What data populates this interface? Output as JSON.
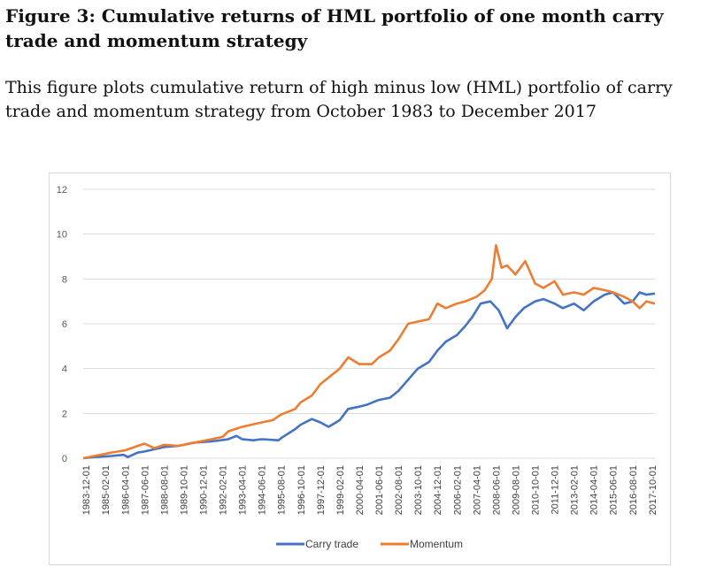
{
  "figure": {
    "title": "Figure 3: Cumulative returns of HML portfolio of one month carry trade and momentum strategy",
    "description": "This figure plots cumulative return of high minus low (HML) portfolio of carry trade and momentum strategy from October 1983 to December 2017"
  },
  "chart_data": {
    "type": "line",
    "title": "",
    "xlabel": "",
    "ylabel": "",
    "ylim": [
      0,
      12
    ],
    "yticks": [
      0,
      2,
      4,
      6,
      8,
      10,
      12
    ],
    "grid": true,
    "legend_position": "bottom",
    "x_tick_labels": [
      "1983-12-01",
      "1985-02-01",
      "1986-04-01",
      "1987-06-01",
      "1988-08-01",
      "1989-10-01",
      "1990-12-01",
      "1992-02-01",
      "1993-04-01",
      "1994-06-01",
      "1995-08-01",
      "1996-10-01",
      "1997-12-01",
      "1999-02-01",
      "2000-04-01",
      "2001-06-01",
      "2002-08-01",
      "2003-10-01",
      "2004-12-01",
      "2006-02-01",
      "2007-04-01",
      "2008-06-01",
      "2009-08-01",
      "2010-10-01",
      "2011-12-01",
      "2013-02-01",
      "2014-04-01",
      "2015-06-01",
      "2016-08-01",
      "2017-10-01"
    ],
    "series": [
      {
        "name": "Carry trade",
        "color": "#4472C4",
        "points": [
          [
            "1983-10",
            0.0
          ],
          [
            "1984-06",
            0.05
          ],
          [
            "1985-06",
            0.1
          ],
          [
            "1986-03",
            0.15
          ],
          [
            "1986-06",
            0.05
          ],
          [
            "1987-01",
            0.25
          ],
          [
            "1987-06",
            0.3
          ],
          [
            "1988-01",
            0.4
          ],
          [
            "1988-08",
            0.5
          ],
          [
            "1989-06",
            0.55
          ],
          [
            "1990-06",
            0.7
          ],
          [
            "1991-06",
            0.75
          ],
          [
            "1992-06",
            0.85
          ],
          [
            "1992-12",
            1.0
          ],
          [
            "1993-04",
            0.85
          ],
          [
            "1993-12",
            0.8
          ],
          [
            "1994-06",
            0.85
          ],
          [
            "1995-06",
            0.8
          ],
          [
            "1995-08",
            0.9
          ],
          [
            "1996-06",
            1.3
          ],
          [
            "1996-10",
            1.5
          ],
          [
            "1997-06",
            1.75
          ],
          [
            "1997-12",
            1.6
          ],
          [
            "1998-06",
            1.4
          ],
          [
            "1999-02",
            1.7
          ],
          [
            "1999-08",
            2.2
          ],
          [
            "2000-04",
            2.3
          ],
          [
            "2000-10",
            2.4
          ],
          [
            "2001-06",
            2.6
          ],
          [
            "2002-02",
            2.7
          ],
          [
            "2002-08",
            3.0
          ],
          [
            "2003-03",
            3.5
          ],
          [
            "2003-10",
            4.0
          ],
          [
            "2004-06",
            4.3
          ],
          [
            "2004-12",
            4.8
          ],
          [
            "2005-06",
            5.2
          ],
          [
            "2006-02",
            5.5
          ],
          [
            "2006-08",
            5.9
          ],
          [
            "2007-01",
            6.3
          ],
          [
            "2007-07",
            6.9
          ],
          [
            "2008-02",
            7.0
          ],
          [
            "2008-08",
            6.6
          ],
          [
            "2009-02",
            5.8
          ],
          [
            "2009-08",
            6.3
          ],
          [
            "2010-02",
            6.7
          ],
          [
            "2010-10",
            7.0
          ],
          [
            "2011-04",
            7.1
          ],
          [
            "2011-12",
            6.9
          ],
          [
            "2012-06",
            6.7
          ],
          [
            "2013-02",
            6.9
          ],
          [
            "2013-09",
            6.6
          ],
          [
            "2014-04",
            7.0
          ],
          [
            "2014-12",
            7.3
          ],
          [
            "2015-06",
            7.4
          ],
          [
            "2016-02",
            6.9
          ],
          [
            "2016-08",
            7.0
          ],
          [
            "2017-01",
            7.4
          ],
          [
            "2017-06",
            7.3
          ],
          [
            "2017-12",
            7.35
          ]
        ]
      },
      {
        "name": "Momentum",
        "color": "#ED7D31",
        "points": [
          [
            "1983-10",
            0.0
          ],
          [
            "1984-06",
            0.1
          ],
          [
            "1985-06",
            0.25
          ],
          [
            "1986-04",
            0.35
          ],
          [
            "1987-01",
            0.55
          ],
          [
            "1987-06",
            0.65
          ],
          [
            "1988-01",
            0.45
          ],
          [
            "1988-08",
            0.6
          ],
          [
            "1989-06",
            0.55
          ],
          [
            "1989-10",
            0.6
          ],
          [
            "1990-06",
            0.7
          ],
          [
            "1991-06",
            0.85
          ],
          [
            "1992-02",
            0.95
          ],
          [
            "1992-06",
            1.2
          ],
          [
            "1993-04",
            1.4
          ],
          [
            "1994-06",
            1.6
          ],
          [
            "1995-02",
            1.7
          ],
          [
            "1995-08",
            1.95
          ],
          [
            "1996-06",
            2.2
          ],
          [
            "1996-10",
            2.5
          ],
          [
            "1997-06",
            2.8
          ],
          [
            "1997-12",
            3.3
          ],
          [
            "1998-06",
            3.6
          ],
          [
            "1999-02",
            4.0
          ],
          [
            "1999-08",
            4.5
          ],
          [
            "2000-04",
            4.2
          ],
          [
            "2001-01",
            4.2
          ],
          [
            "2001-06",
            4.5
          ],
          [
            "2002-02",
            4.8
          ],
          [
            "2002-08",
            5.3
          ],
          [
            "2003-03",
            6.0
          ],
          [
            "2003-10",
            6.1
          ],
          [
            "2004-06",
            6.2
          ],
          [
            "2004-12",
            6.9
          ],
          [
            "2005-06",
            6.7
          ],
          [
            "2006-02",
            6.9
          ],
          [
            "2006-08",
            7.0
          ],
          [
            "2007-04",
            7.2
          ],
          [
            "2007-10",
            7.5
          ],
          [
            "2008-03",
            8.0
          ],
          [
            "2008-06",
            9.5
          ],
          [
            "2008-10",
            8.5
          ],
          [
            "2009-02",
            8.6
          ],
          [
            "2009-08",
            8.2
          ],
          [
            "2010-03",
            8.8
          ],
          [
            "2010-10",
            7.8
          ],
          [
            "2011-04",
            7.6
          ],
          [
            "2011-12",
            7.9
          ],
          [
            "2012-06",
            7.3
          ],
          [
            "2013-02",
            7.4
          ],
          [
            "2013-09",
            7.3
          ],
          [
            "2014-04",
            7.6
          ],
          [
            "2014-12",
            7.5
          ],
          [
            "2015-06",
            7.4
          ],
          [
            "2016-02",
            7.2
          ],
          [
            "2016-08",
            7.0
          ],
          [
            "2017-01",
            6.7
          ],
          [
            "2017-06",
            7.0
          ],
          [
            "2017-12",
            6.9
          ]
        ]
      }
    ]
  }
}
